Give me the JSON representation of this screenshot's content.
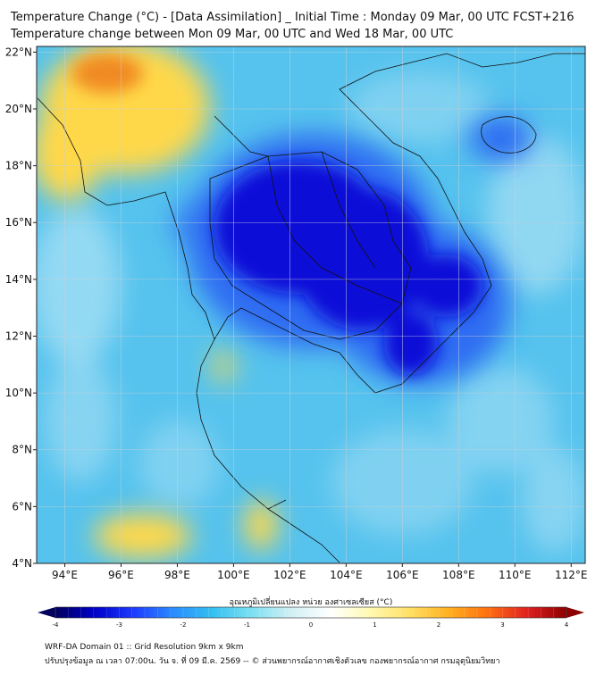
{
  "title_line1": "Temperature Change (°C) - [Data Assimilation] _ Initial Time : Monday 09 Mar, 00 UTC FCST+216",
  "title_line2": "Temperature change between Mon 09 Mar, 00 UTC and Wed 18 Mar, 00 UTC",
  "lon_labels": [
    "94°E",
    "96°E",
    "98°E",
    "100°E",
    "102°E",
    "104°E",
    "106°E",
    "108°E",
    "110°E",
    "112°E"
  ],
  "lat_labels": [
    "22°N",
    "20°N",
    "18°N",
    "16°N",
    "14°N",
    "12°N",
    "10°N",
    "8°N",
    "6°N",
    "4°N"
  ],
  "colorbar": {
    "title": "อุณหภูมิเปลี่ยนแปลง หน่วย องศาเซลเซียส (°C)",
    "ticks": [
      "-4",
      "-3",
      "-2",
      "-1",
      "0",
      "1",
      "2",
      "3",
      "4"
    ],
    "range": [
      -4,
      4
    ],
    "colors": [
      "#02005e",
      "#0000c8",
      "#1e3cff",
      "#2a8cff",
      "#34c0f0",
      "#7de0f2",
      "#d2f0f4",
      "#ffffff",
      "#fff9b0",
      "#ffe066",
      "#ffb020",
      "#ff7010",
      "#e02020",
      "#8b0000"
    ]
  },
  "footer_line1": "WRF-DA Domain 01 :: Grid Resolution 9km x 9km",
  "footer_line2": "ปรับปรุงข้อมูล ณ เวลา 07:00น. วัน จ. ที่ 09 มี.ค. 2569 -- © ส่วนพยากรณ์อากาศเชิงตัวเลข กองพยากรณ์อากาศ กรมอุตุนิยมวิทยา",
  "map_extent": {
    "lon": [
      93,
      112.5
    ],
    "lat": [
      4,
      22.2
    ]
  },
  "field_colors": {
    "background": "#56c3ee",
    "strong_cooling": "#0a10d8",
    "moderate_cooling": "#2f6cf2",
    "weak_change": "#a9e0f4",
    "warming": "#ffd84a",
    "strong_warming": "#f08a20"
  }
}
